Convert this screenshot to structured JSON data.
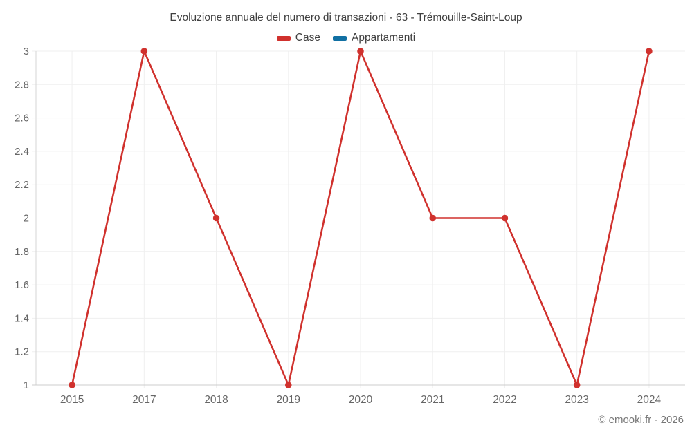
{
  "chart_data": {
    "type": "line",
    "title": "Evoluzione annuale del numero di transazioni - 63 - Trémouille-Saint-Loup",
    "categories": [
      "2015",
      "2017",
      "2018",
      "2019",
      "2020",
      "2021",
      "2022",
      "2023",
      "2024"
    ],
    "series": [
      {
        "name": "Case",
        "color": "#d0312d",
        "values": [
          1,
          3,
          2,
          1,
          3,
          2,
          2,
          1,
          3
        ]
      },
      {
        "name": "Appartamenti",
        "color": "#1170a3",
        "values": []
      }
    ],
    "xlabel": "",
    "ylabel": "",
    "ylim": [
      1,
      3
    ],
    "ytick_step": 0.2,
    "yticks": [
      1,
      1.2,
      1.4,
      1.6,
      1.8,
      2,
      2.2,
      2.4,
      2.6,
      2.8,
      3
    ],
    "grid": true,
    "legend_position": "top"
  },
  "footer": {
    "text": "© emooki.fr - 2026"
  },
  "colors": {
    "gridline": "#efefef",
    "axis_line": "#d6d6d6",
    "x_axis_line": "#cccccc",
    "tick_label": "#666666",
    "title_text": "#404040",
    "footer_text": "#777777",
    "background": "#ffffff"
  }
}
